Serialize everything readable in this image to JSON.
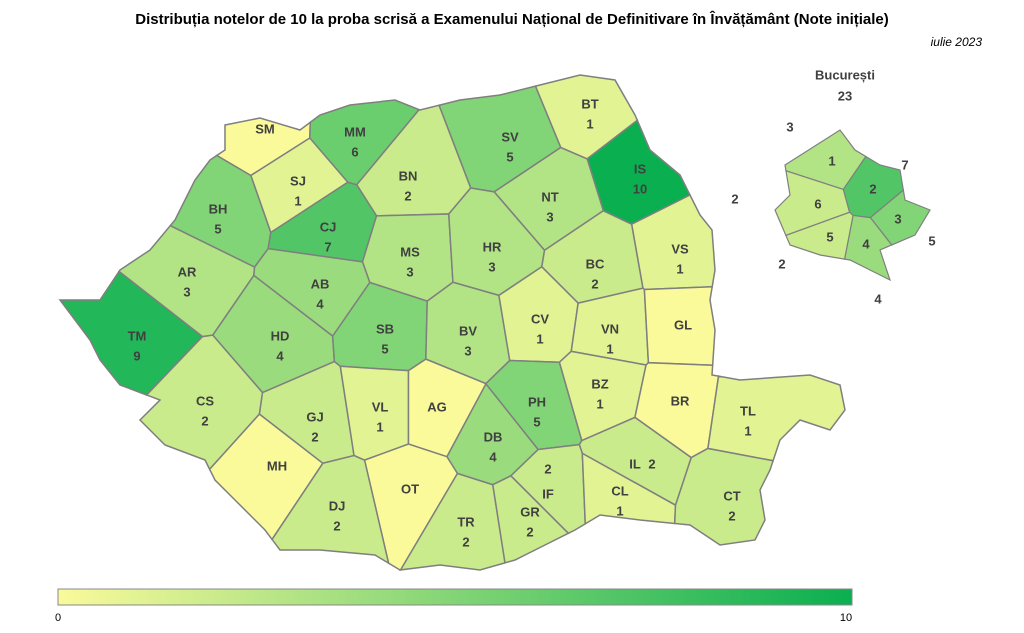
{
  "title": "Distribuția notelor de 10 la proba scrisă a Examenului Național de Definitivare în Învățământ (Note inițiale)",
  "subtitle": "iulie 2023",
  "counties": [
    {
      "code": "SM",
      "value": 0
    },
    {
      "code": "MM",
      "value": 6
    },
    {
      "code": "BT",
      "value": 1
    },
    {
      "code": "SV",
      "value": 5
    },
    {
      "code": "IS",
      "value": 10
    },
    {
      "code": "SJ",
      "value": 1
    },
    {
      "code": "BN",
      "value": 2
    },
    {
      "code": "NT",
      "value": 3
    },
    {
      "code": "BH",
      "value": 5
    },
    {
      "code": "CJ",
      "value": 7
    },
    {
      "code": "VS",
      "value": 1
    },
    {
      "code": "AR",
      "value": 3
    },
    {
      "code": "MS",
      "value": 3
    },
    {
      "code": "HR",
      "value": 3
    },
    {
      "code": "BC",
      "value": 2
    },
    {
      "code": "AB",
      "value": 4
    },
    {
      "code": "TM",
      "value": 9
    },
    {
      "code": "HD",
      "value": 4
    },
    {
      "code": "SB",
      "value": 5
    },
    {
      "code": "BV",
      "value": 3
    },
    {
      "code": "CV",
      "value": 1
    },
    {
      "code": "VN",
      "value": 1
    },
    {
      "code": "GL",
      "value": 0
    },
    {
      "code": "CS",
      "value": 2
    },
    {
      "code": "GJ",
      "value": 2
    },
    {
      "code": "VL",
      "value": 1
    },
    {
      "code": "AG",
      "value": 0
    },
    {
      "code": "PH",
      "value": 5
    },
    {
      "code": "BZ",
      "value": 1
    },
    {
      "code": "BR",
      "value": 0
    },
    {
      "code": "TL",
      "value": 1
    },
    {
      "code": "DB",
      "value": 4
    },
    {
      "code": "MH",
      "value": 0
    },
    {
      "code": "OT",
      "value": 0
    },
    {
      "code": "IL",
      "value": 2
    },
    {
      "code": "IF",
      "value": 2
    },
    {
      "code": "CL",
      "value": 1
    },
    {
      "code": "CT",
      "value": 2
    },
    {
      "code": "DJ",
      "value": 2
    },
    {
      "code": "TR",
      "value": 2
    },
    {
      "code": "GR",
      "value": 2
    }
  ],
  "bucuresti": {
    "label": "București",
    "total": 23,
    "sectors": [
      {
        "sector": 1,
        "value": 3
      },
      {
        "sector": 2,
        "value": 7
      },
      {
        "sector": 3,
        "value": 5
      },
      {
        "sector": 4,
        "value": 4
      },
      {
        "sector": 5,
        "value": 2
      },
      {
        "sector": 6,
        "value": 2
      }
    ]
  },
  "legend": {
    "min": 0,
    "max": 10
  }
}
